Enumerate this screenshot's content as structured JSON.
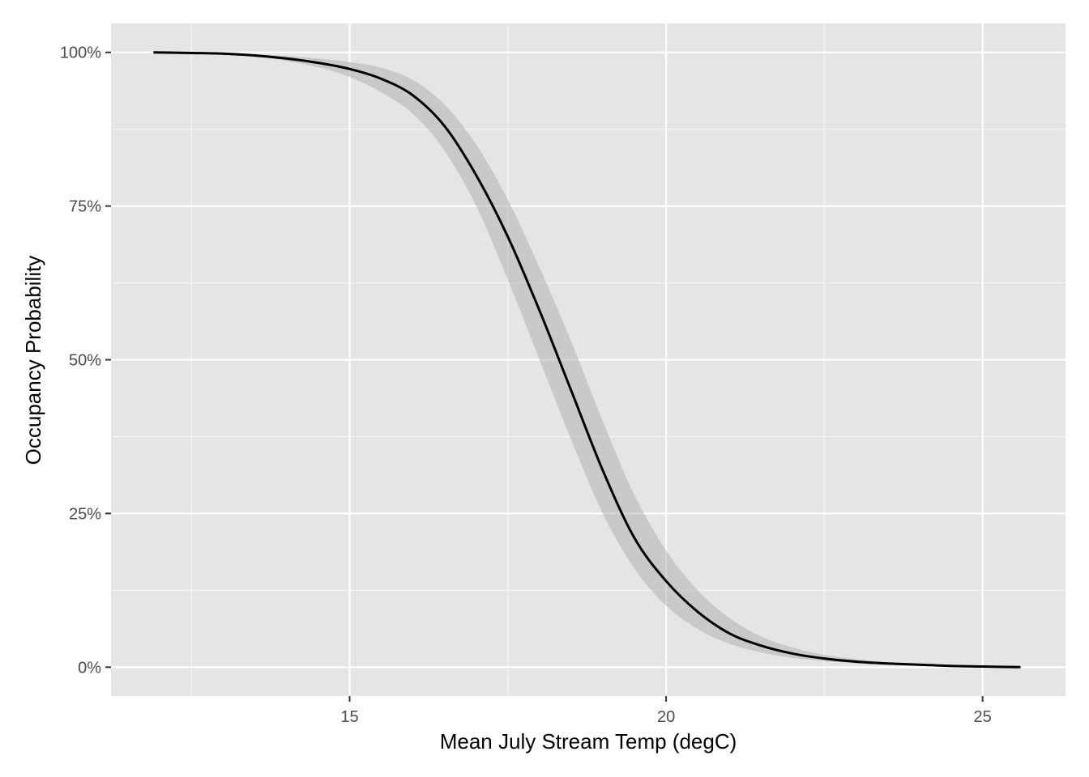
{
  "chart_data": {
    "type": "line",
    "title": "",
    "xlabel": "Mean July Stream Temp (degC)",
    "ylabel": "Occupancy Probability",
    "xlim": [
      11.23,
      26.31
    ],
    "ylim": [
      -0.047,
      1.047
    ],
    "x_ticks": [
      15,
      20,
      25
    ],
    "x_tick_labels": [
      "15",
      "20",
      "25"
    ],
    "y_ticks": [
      0,
      0.25,
      0.5,
      0.75,
      1.0
    ],
    "y_tick_labels": [
      "0%",
      "25%",
      "50%",
      "75%",
      "100%"
    ],
    "grid": true,
    "legend": "none",
    "colors": {
      "panel_background": "#e5e5e5",
      "grid_major": "#ffffff",
      "line": "#000000",
      "ribbon": "#b3b3b3"
    },
    "series": [
      {
        "x": [
          11.9,
          12.5,
          13.0,
          13.5,
          14.0,
          14.5,
          15.0,
          15.5,
          16.0,
          16.5,
          17.0,
          17.5,
          18.0,
          18.5,
          19.0,
          19.5,
          20.0,
          20.5,
          21.0,
          21.5,
          22.0,
          22.5,
          23.0,
          23.5,
          24.0,
          24.5,
          25.0,
          25.6
        ],
        "values": [
          1.0,
          0.999,
          0.998,
          0.995,
          0.99,
          0.983,
          0.973,
          0.957,
          0.93,
          0.88,
          0.8,
          0.7,
          0.58,
          0.45,
          0.32,
          0.21,
          0.14,
          0.09,
          0.055,
          0.035,
          0.022,
          0.014,
          0.009,
          0.006,
          0.004,
          0.002,
          0.001,
          0.0
        ],
        "lower": [
          1.0,
          0.999,
          0.997,
          0.993,
          0.986,
          0.976,
          0.96,
          0.935,
          0.9,
          0.84,
          0.75,
          0.63,
          0.5,
          0.37,
          0.25,
          0.16,
          0.1,
          0.062,
          0.038,
          0.024,
          0.015,
          0.01,
          0.006,
          0.004,
          0.002,
          0.001,
          0.0,
          0.0
        ],
        "upper": [
          1.0,
          1.0,
          0.999,
          0.997,
          0.994,
          0.99,
          0.984,
          0.975,
          0.955,
          0.915,
          0.85,
          0.76,
          0.65,
          0.53,
          0.4,
          0.28,
          0.19,
          0.125,
          0.08,
          0.05,
          0.032,
          0.02,
          0.013,
          0.008,
          0.005,
          0.003,
          0.002,
          0.001
        ]
      }
    ]
  }
}
